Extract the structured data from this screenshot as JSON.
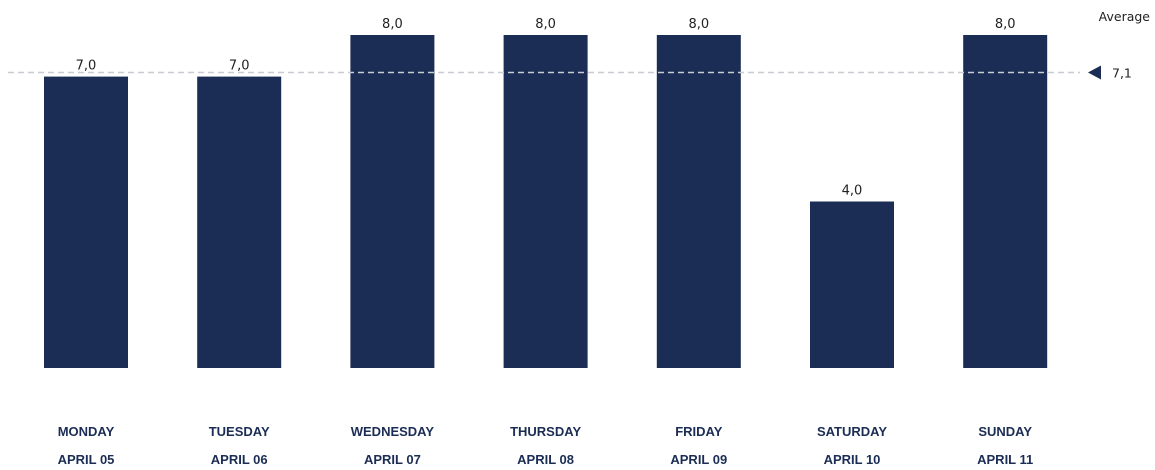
{
  "chart_data": {
    "type": "bar",
    "categories": [
      "MONDAY",
      "TUESDAY",
      "WEDNESDAY",
      "THURSDAY",
      "FRIDAY",
      "SATURDAY",
      "SUNDAY"
    ],
    "dates": [
      "APRIL 05",
      "APRIL 06",
      "APRIL 07",
      "APRIL 08",
      "APRIL 09",
      "APRIL 10",
      "APRIL 11"
    ],
    "values": [
      7.0,
      7.0,
      8.0,
      8.0,
      8.0,
      4.0,
      8.0
    ],
    "value_labels": [
      "7,0",
      "7,0",
      "8,0",
      "8,0",
      "8,0",
      "4,0",
      "8,0"
    ],
    "ylim": [
      0,
      8
    ],
    "grid": false,
    "bar_color": "#1b2d55",
    "average": {
      "title": "Average",
      "value": 7.1,
      "label": "7,1",
      "line_color": "#c9ccd3",
      "marker_color": "#1b2d55"
    }
  }
}
